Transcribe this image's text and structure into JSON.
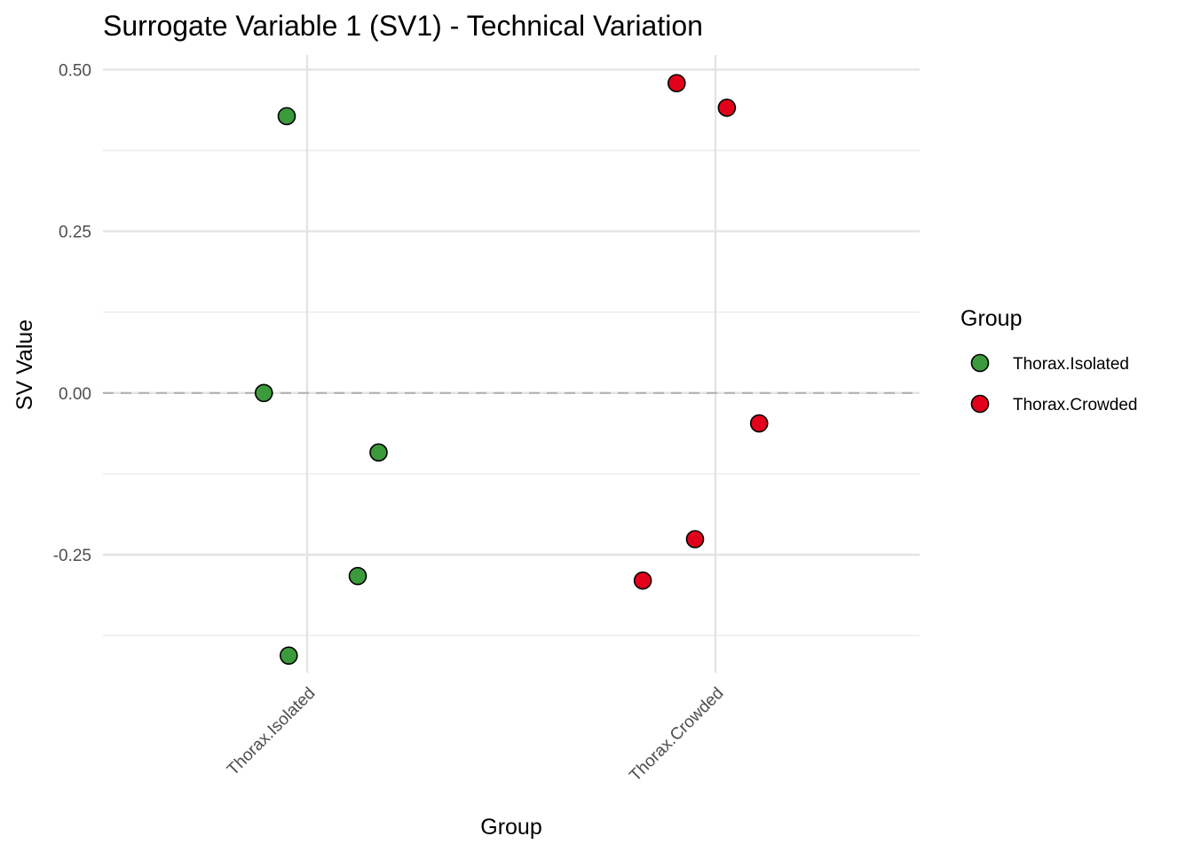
{
  "chart_data": {
    "type": "scatter",
    "title": "Surrogate Variable 1 (SV1) - Technical Variation",
    "xlabel": "Group",
    "ylabel": "SV Value",
    "categories": [
      "Thorax.Isolated",
      "Thorax.Crowded"
    ],
    "ylim": [
      -0.4325,
      0.5225
    ],
    "y_ticks": [
      {
        "value": 0.5,
        "label": "0.50"
      },
      {
        "value": 0.25,
        "label": "0.25"
      },
      {
        "value": 0.0,
        "label": "0.00"
      },
      {
        "value": -0.25,
        "label": "-0.25"
      }
    ],
    "reference_line": {
      "y": 0,
      "style": "dashed"
    },
    "grid": true,
    "legend": {
      "title": "Group",
      "position": "right",
      "entries": [
        {
          "label": "Thorax.Isolated",
          "color": "#3b9a3b"
        },
        {
          "label": "Thorax.Crowded",
          "color": "#e2001a"
        }
      ]
    },
    "series": [
      {
        "name": "Thorax.Isolated",
        "color": "#3b9a3b",
        "points": [
          {
            "x": "Thorax.Isolated",
            "jitter": -0.05,
            "y": 0.428
          },
          {
            "x": "Thorax.Isolated",
            "jitter": -0.106,
            "y": 0.0
          },
          {
            "x": "Thorax.Isolated",
            "jitter": 0.175,
            "y": -0.092
          },
          {
            "x": "Thorax.Isolated",
            "jitter": 0.124,
            "y": -0.283
          },
          {
            "x": "Thorax.Isolated",
            "jitter": -0.045,
            "y": -0.406
          }
        ]
      },
      {
        "name": "Thorax.Crowded",
        "color": "#e2001a",
        "points": [
          {
            "x": "Thorax.Crowded",
            "jitter": -0.095,
            "y": 0.479
          },
          {
            "x": "Thorax.Crowded",
            "jitter": 0.028,
            "y": 0.441
          },
          {
            "x": "Thorax.Crowded",
            "jitter": 0.107,
            "y": -0.047
          },
          {
            "x": "Thorax.Crowded",
            "jitter": -0.05,
            "y": -0.226
          },
          {
            "x": "Thorax.Crowded",
            "jitter": -0.178,
            "y": -0.29
          }
        ]
      }
    ]
  }
}
